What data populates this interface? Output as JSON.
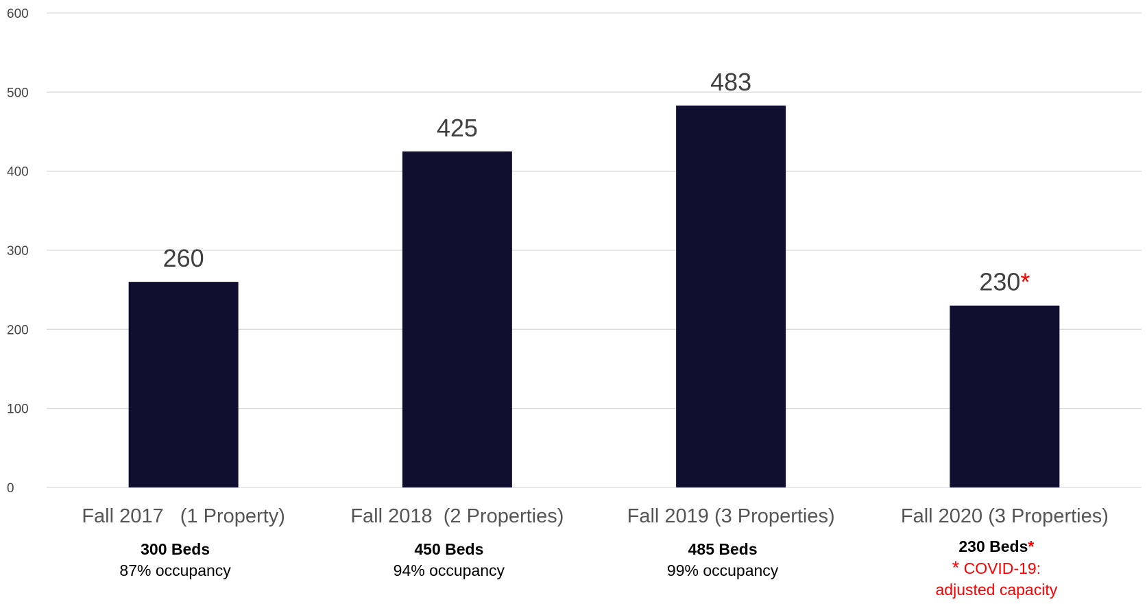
{
  "chart_data": {
    "type": "bar",
    "categories": [
      "Fall 2017   (1 Property)",
      "Fall 2018  (2 Properties)",
      "Fall 2019 (3 Properties)",
      "Fall 2020 (3 Properties)"
    ],
    "values": [
      260,
      425,
      483,
      230
    ],
    "data_labels": [
      "260",
      "425",
      "483",
      "230"
    ],
    "value_markers": [
      "",
      "",
      "",
      "*"
    ],
    "ylim": [
      0,
      600
    ],
    "yticks": [
      0,
      100,
      200,
      300,
      400,
      500,
      600
    ],
    "grid": true,
    "title": "",
    "xlabel": "",
    "ylabel": "",
    "colors": {
      "bar": "#110f30",
      "grid": "#d9d9d9",
      "accent": "#ff0000"
    }
  },
  "notes": [
    {
      "beds": "300 Beds",
      "beds_marker": "",
      "lines": [
        "87% occupancy"
      ],
      "footnote_marker": ""
    },
    {
      "beds": "450 Beds",
      "beds_marker": "",
      "lines": [
        "94% occupancy"
      ],
      "footnote_marker": ""
    },
    {
      "beds": "485 Beds",
      "beds_marker": "",
      "lines": [
        "99% occupancy"
      ],
      "footnote_marker": ""
    },
    {
      "beds": "230 Beds",
      "beds_marker": "*",
      "lines": [
        "COVID-19:",
        "adjusted capacity"
      ],
      "footnote_marker": "*"
    }
  ]
}
